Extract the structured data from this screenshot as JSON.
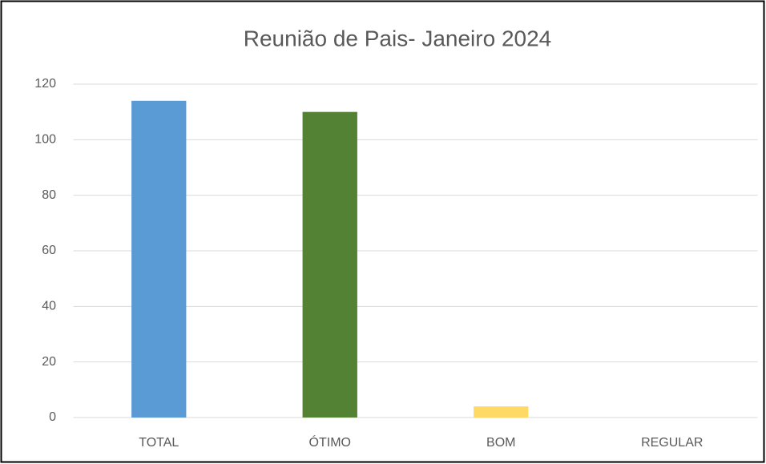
{
  "chart_data": {
    "type": "bar",
    "title": "Reunião de Pais- Janeiro 2024",
    "categories": [
      "TOTAL",
      "ÓTIMO",
      "BOM",
      "REGULAR"
    ],
    "values": [
      114,
      110,
      4,
      0
    ],
    "colors": [
      "#5b9bd5",
      "#548235",
      "#ffd966",
      "#a5a5a5"
    ],
    "ylim": [
      0,
      120
    ],
    "yticks": [
      0,
      20,
      40,
      60,
      80,
      100,
      120
    ],
    "grid": true
  }
}
